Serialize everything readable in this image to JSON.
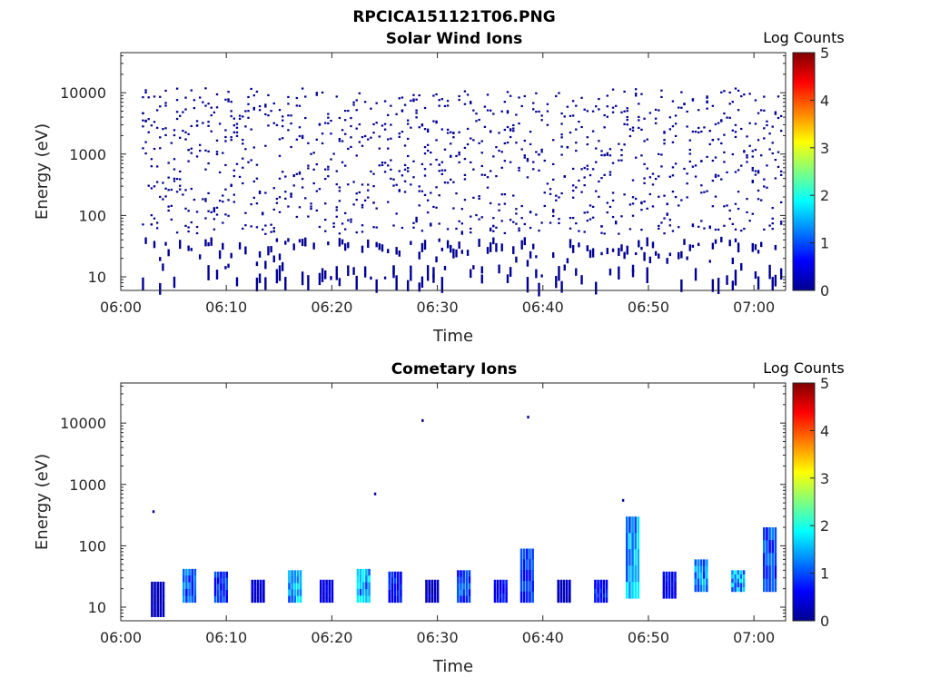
{
  "figure_title": "RPCICA151121T06.PNG",
  "chart_data": [
    {
      "type": "heatmap",
      "title": "Solar Wind Ions",
      "xlabel": "Time",
      "ylabel": "Energy (eV)",
      "x_range": [
        "06:00",
        "07:03"
      ],
      "x_ticks": [
        "06:00",
        "06:10",
        "06:20",
        "06:30",
        "06:40",
        "06:50",
        "07:00"
      ],
      "y_scale": "log",
      "y_range": [
        6,
        45000
      ],
      "y_ticks": [
        "10",
        "100",
        "1000",
        "10000"
      ],
      "colorbar": {
        "label": "Log Counts",
        "range": [
          0,
          5
        ],
        "ticks": [
          "0",
          "1",
          "2",
          "3",
          "4",
          "5"
        ],
        "colormap": "jet"
      },
      "description_values": {
        "time_start": "06:02",
        "time_end": "07:03",
        "energy_min_eV": 6,
        "energy_max_eV": 20000,
        "dense_band_eV": [
          10,
          45
        ],
        "sparse_scatter_eV": [
          50,
          12000
        ],
        "log_counts_typical": 0.1
      }
    },
    {
      "type": "heatmap",
      "title": "Cometary Ions",
      "xlabel": "Time",
      "ylabel": "Energy (eV)",
      "x_range": [
        "06:00",
        "07:03"
      ],
      "x_ticks": [
        "06:00",
        "06:10",
        "06:20",
        "06:30",
        "06:40",
        "06:50",
        "07:00"
      ],
      "y_scale": "log",
      "y_range": [
        6,
        45000
      ],
      "y_ticks": [
        "10",
        "100",
        "1000",
        "10000"
      ],
      "colorbar": {
        "label": "Log Counts",
        "range": [
          0,
          5
        ],
        "ticks": [
          "0",
          "1",
          "2",
          "3",
          "4",
          "5"
        ],
        "colormap": "jet"
      },
      "bursts": [
        {
          "t": "06:03.5",
          "e_low": 7,
          "e_high": 26,
          "log_counts": 0.4
        },
        {
          "t": "06:06.5",
          "e_low": 12,
          "e_high": 42,
          "log_counts": 1.3
        },
        {
          "t": "06:09.5",
          "e_low": 12,
          "e_high": 38,
          "log_counts": 1.0
        },
        {
          "t": "06:13",
          "e_low": 12,
          "e_high": 28,
          "log_counts": 0.5
        },
        {
          "t": "06:16.5",
          "e_low": 12,
          "e_high": 40,
          "log_counts": 1.8
        },
        {
          "t": "06:19.5",
          "e_low": 12,
          "e_high": 28,
          "log_counts": 0.6
        },
        {
          "t": "06:23",
          "e_low": 12,
          "e_high": 42,
          "log_counts": 1.8
        },
        {
          "t": "06:26",
          "e_low": 12,
          "e_high": 38,
          "log_counts": 0.9
        },
        {
          "t": "06:29.5",
          "e_low": 12,
          "e_high": 28,
          "log_counts": 0.4
        },
        {
          "t": "06:32.5",
          "e_low": 12,
          "e_high": 40,
          "log_counts": 1.2
        },
        {
          "t": "06:36",
          "e_low": 12,
          "e_high": 28,
          "log_counts": 0.8
        },
        {
          "t": "06:38.5",
          "e_low": 12,
          "e_high": 90,
          "log_counts": 1.1
        },
        {
          "t": "06:42",
          "e_low": 12,
          "e_high": 28,
          "log_counts": 0.4
        },
        {
          "t": "06:45.5",
          "e_low": 12,
          "e_high": 28,
          "log_counts": 1.0
        },
        {
          "t": "06:48.5",
          "e_low": 14,
          "e_high": 300,
          "log_counts": 1.7
        },
        {
          "t": "06:52",
          "e_low": 14,
          "e_high": 38,
          "log_counts": 0.7
        },
        {
          "t": "06:55",
          "e_low": 18,
          "e_high": 60,
          "log_counts": 1.6
        },
        {
          "t": "06:58.5",
          "e_low": 18,
          "e_high": 40,
          "log_counts": 1.7
        },
        {
          "t": "07:01.5",
          "e_low": 18,
          "e_high": 200,
          "log_counts": 1.2
        }
      ],
      "isolated_points": [
        {
          "t": "06:28.5",
          "e": 11000
        },
        {
          "t": "06:38.5",
          "e": 12500
        },
        {
          "t": "06:24",
          "e": 700
        },
        {
          "t": "06:03",
          "e": 360
        },
        {
          "t": "06:47.5",
          "e": 550
        }
      ]
    }
  ],
  "colors": {
    "axis": "#262626",
    "jet_low": "#00008f",
    "jet_high": "#800000"
  }
}
